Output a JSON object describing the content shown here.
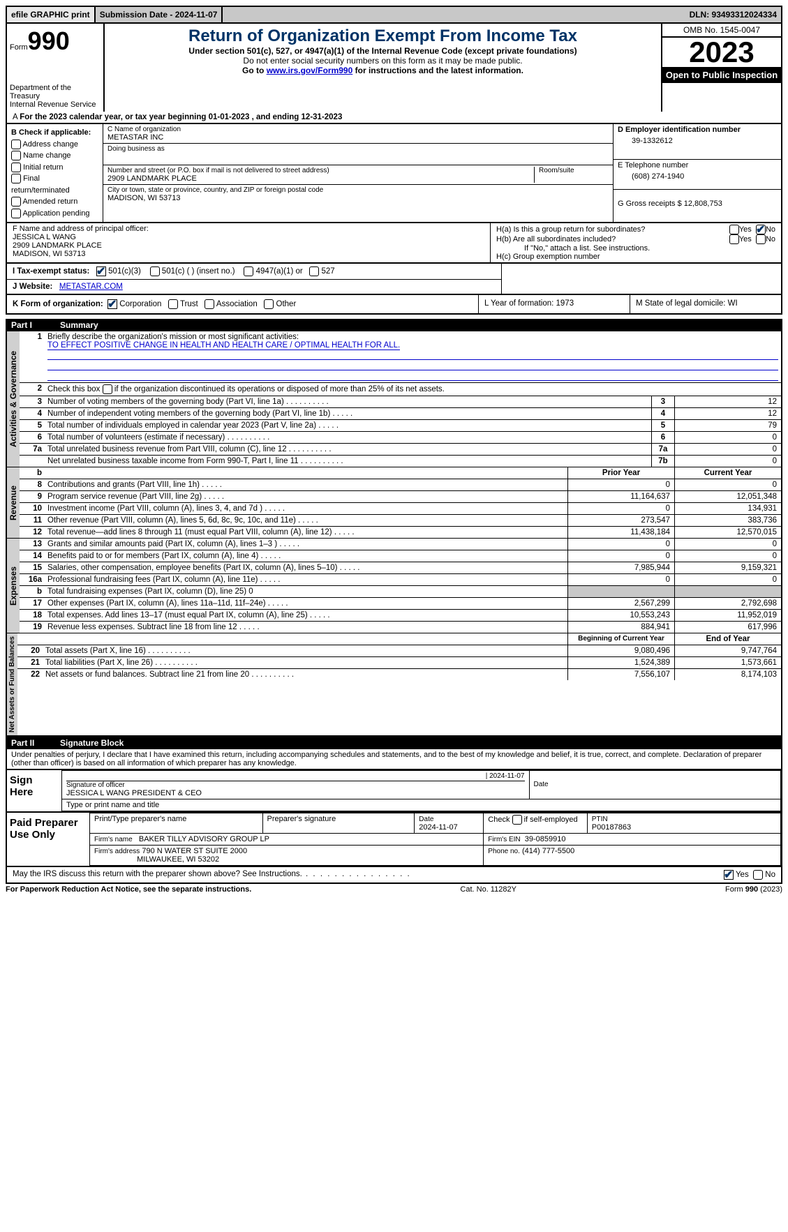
{
  "topbar": {
    "efile": "efile GRAPHIC print",
    "submission_label": "Submission Date - 2024-11-07",
    "dln": "DLN: 93493312024334"
  },
  "header": {
    "form_label": "Form",
    "form_number": "990",
    "dept": "Department of the Treasury",
    "irs": "Internal Revenue Service",
    "title": "Return of Organization Exempt From Income Tax",
    "sub1": "Under section 501(c), 527, or 4947(a)(1) of the Internal Revenue Code (except private foundations)",
    "sub2": "Do not enter social security numbers on this form as it may be made public.",
    "sub3_pre": "Go to ",
    "sub3_link": "www.irs.gov/Form990",
    "sub3_post": " for instructions and the latest information.",
    "omb": "OMB No. 1545-0047",
    "year": "2023",
    "open": "Open to Public Inspection"
  },
  "line_a": "For the 2023 calendar year, or tax year beginning 01-01-2023   , and ending 12-31-2023",
  "box_b": {
    "title": "B Check if applicable:",
    "items": [
      "Address change",
      "Name change",
      "Initial return",
      "Final return/terminated",
      "Amended return",
      "Application pending"
    ]
  },
  "box_c": {
    "name_label": "C Name of organization",
    "name": "METASTAR INC",
    "dba_label": "Doing business as",
    "addr_label": "Number and street (or P.O. box if mail is not delivered to street address)",
    "room_label": "Room/suite",
    "addr": "2909 LANDMARK PLACE",
    "city_label": "City or town, state or province, country, and ZIP or foreign postal code",
    "city": "MADISON, WI  53713"
  },
  "box_d": {
    "label": "D Employer identification number",
    "value": "39-1332612"
  },
  "box_e": {
    "label": "E Telephone number",
    "value": "(608) 274-1940"
  },
  "box_g": {
    "label": "G Gross receipts $ 12,808,753"
  },
  "box_f": {
    "label": "F  Name and address of principal officer:",
    "name": "JESSICA L WANG",
    "addr1": "2909 LANDMARK PLACE",
    "addr2": "MADISON, WI  53713"
  },
  "box_h": {
    "ha_label": "H(a)  Is this a group return for subordinates?",
    "hb_label": "H(b)  Are all subordinates included?",
    "hb_note": "If \"No,\" attach a list. See instructions.",
    "hc_label": "H(c)  Group exemption number",
    "yes": "Yes",
    "no": "No"
  },
  "box_i": {
    "label": "I   Tax-exempt status:",
    "opts": [
      "501(c)(3)",
      "501(c) (  ) (insert no.)",
      "4947(a)(1) or",
      "527"
    ]
  },
  "box_j": {
    "label": "J   Website:",
    "value": "METASTAR.COM"
  },
  "box_k": {
    "label": "K Form of organization:",
    "opts": [
      "Corporation",
      "Trust",
      "Association",
      "Other"
    ]
  },
  "box_l": {
    "label": "L Year of formation: 1973"
  },
  "box_m": {
    "label": "M State of legal domicile: WI"
  },
  "part1": {
    "num": "Part I",
    "title": "Summary"
  },
  "governance_label": "Activities & Governance",
  "revenue_label": "Revenue",
  "expenses_label": "Expenses",
  "netassets_label": "Net Assets or Fund Balances",
  "lines_gov": {
    "l1_label": "Briefly describe the organization's mission or most significant activities:",
    "l1_value": "TO EFFECT POSITIVE CHANGE IN HEALTH AND HEALTH CARE / OPTIMAL HEALTH FOR ALL.",
    "l2": "Check this box        if the organization discontinued its operations or disposed of more than 25% of its net assets.",
    "l3": "Number of voting members of the governing body (Part VI, line 1a)",
    "l4": "Number of independent voting members of the governing body (Part VI, line 1b)",
    "l5": "Total number of individuals employed in calendar year 2023 (Part V, line 2a)",
    "l6": "Total number of volunteers (estimate if necessary)",
    "l7a": "Total unrelated business revenue from Part VIII, column (C), line 12",
    "l7b": "Net unrelated business taxable income from Form 990-T, Part I, line 11",
    "v3": "12",
    "v4": "12",
    "v5": "79",
    "v6": "0",
    "v7a": "0",
    "v7b": "0"
  },
  "col_headers": {
    "prior": "Prior Year",
    "current": "Current Year"
  },
  "col_headers2": {
    "begin": "Beginning of Current Year",
    "end": "End of Year"
  },
  "lines_rev": [
    {
      "n": "8",
      "t": "Contributions and grants (Part VIII, line 1h)",
      "p": "0",
      "c": "0"
    },
    {
      "n": "9",
      "t": "Program service revenue (Part VIII, line 2g)",
      "p": "11,164,637",
      "c": "12,051,348"
    },
    {
      "n": "10",
      "t": "Investment income (Part VIII, column (A), lines 3, 4, and 7d )",
      "p": "0",
      "c": "134,931"
    },
    {
      "n": "11",
      "t": "Other revenue (Part VIII, column (A), lines 5, 6d, 8c, 9c, 10c, and 11e)",
      "p": "273,547",
      "c": "383,736"
    },
    {
      "n": "12",
      "t": "Total revenue—add lines 8 through 11 (must equal Part VIII, column (A), line 12)",
      "p": "11,438,184",
      "c": "12,570,015"
    }
  ],
  "lines_exp": [
    {
      "n": "13",
      "t": "Grants and similar amounts paid (Part IX, column (A), lines 1–3 )",
      "p": "0",
      "c": "0"
    },
    {
      "n": "14",
      "t": "Benefits paid to or for members (Part IX, column (A), line 4)",
      "p": "0",
      "c": "0"
    },
    {
      "n": "15",
      "t": "Salaries, other compensation, employee benefits (Part IX, column (A), lines 5–10)",
      "p": "7,985,944",
      "c": "9,159,321"
    },
    {
      "n": "16a",
      "t": "Professional fundraising fees (Part IX, column (A), line 11e)",
      "p": "0",
      "c": "0"
    },
    {
      "n": "b",
      "t": "Total fundraising expenses (Part IX, column (D), line 25) 0",
      "p": "",
      "c": "",
      "shaded": true
    },
    {
      "n": "17",
      "t": "Other expenses (Part IX, column (A), lines 11a–11d, 11f–24e)",
      "p": "2,567,299",
      "c": "2,792,698"
    },
    {
      "n": "18",
      "t": "Total expenses. Add lines 13–17 (must equal Part IX, column (A), line 25)",
      "p": "10,553,243",
      "c": "11,952,019"
    },
    {
      "n": "19",
      "t": "Revenue less expenses. Subtract line 18 from line 12",
      "p": "884,941",
      "c": "617,996"
    }
  ],
  "lines_net": [
    {
      "n": "20",
      "t": "Total assets (Part X, line 16)",
      "p": "9,080,496",
      "c": "9,747,764"
    },
    {
      "n": "21",
      "t": "Total liabilities (Part X, line 26)",
      "p": "1,524,389",
      "c": "1,573,661"
    },
    {
      "n": "22",
      "t": "Net assets or fund balances. Subtract line 21 from line 20",
      "p": "7,556,107",
      "c": "8,174,103"
    }
  ],
  "part2": {
    "num": "Part II",
    "title": "Signature Block"
  },
  "sig": {
    "declaration": "Under penalties of perjury, I declare that I have examined this return, including accompanying schedules and statements, and to the best of my knowledge and belief, it is true, correct, and complete. Declaration of preparer (other than officer) is based on all information of which preparer has any knowledge.",
    "sign_here": "Sign Here",
    "sig_officer_label": "Signature of officer",
    "officer_name": "JESSICA L WANG PRESIDENT & CEO",
    "name_title_label": "Type or print name and title",
    "date_label": "Date",
    "date_value": "2024-11-07",
    "paid": "Paid Preparer Use Only",
    "prep_name_label": "Print/Type preparer's name",
    "prep_sig_label": "Preparer's signature",
    "prep_date_label": "Date",
    "prep_date": "2024-11-07",
    "self_emp": "Check        if self-employed",
    "ptin_label": "PTIN",
    "ptin": "P00187863",
    "firm_name_label": "Firm's name",
    "firm_name": "BAKER TILLY ADVISORY GROUP LP",
    "firm_ein_label": "Firm's EIN",
    "firm_ein": "39-0859910",
    "firm_addr_label": "Firm's address",
    "firm_addr1": "790 N WATER ST SUITE 2000",
    "firm_addr2": "MILWAUKEE, WI  53202",
    "firm_phone_label": "Phone no.",
    "firm_phone": "(414) 777-5500",
    "discuss": "May the IRS discuss this return with the preparer shown above? See Instructions."
  },
  "footer": {
    "pra": "For Paperwork Reduction Act Notice, see the separate instructions.",
    "cat": "Cat. No. 11282Y",
    "form": "Form 990 (2023)"
  }
}
